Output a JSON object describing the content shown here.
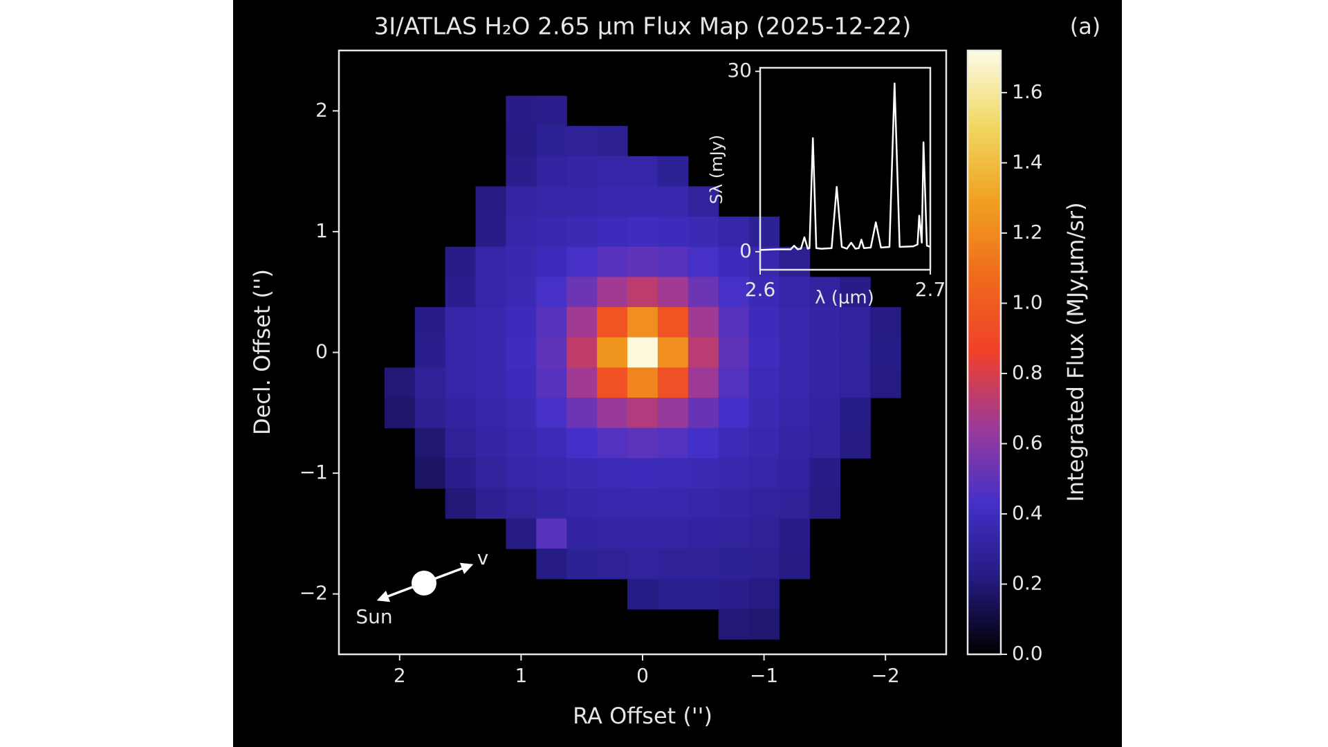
{
  "chart_data": [
    {
      "type": "heatmap",
      "title": "3I/ATLAS H₂O 2.65 μm Flux Map (2025-12-22)",
      "panel_label": "(a)",
      "x_label": "RA Offset ('')",
      "y_label": "Decl. Offset ('')",
      "xlim": [
        2.5,
        -2.5
      ],
      "ylim": [
        -2.5,
        2.5
      ],
      "xticks": [
        2,
        1,
        0,
        {
          "value": -1,
          "label": "−1"
        },
        {
          "value": -2,
          "label": "−2"
        }
      ],
      "yticks": [
        {
          "value": -2,
          "label": "−2"
        },
        {
          "value": -1,
          "label": "−1"
        },
        0,
        1,
        2
      ],
      "x": [
        2.25,
        2,
        1.75,
        1.5,
        1.25,
        1,
        0.75,
        0.5,
        0.25,
        0,
        -0.25,
        -0.5,
        -0.75,
        -1,
        -1.25,
        -1.5,
        -1.75,
        -2,
        -2.25
      ],
      "y": [
        2,
        1.75,
        1.5,
        1.25,
        1,
        0.75,
        0.5,
        0.25,
        0,
        -0.25,
        -0.5,
        -0.75,
        -1,
        -1.25,
        -1.5,
        -1.75,
        -2,
        -2.25
      ],
      "z": [
        [
          null,
          null,
          null,
          null,
          null,
          0.24,
          0.25,
          null,
          null,
          null,
          null,
          null,
          null,
          null,
          null,
          null,
          null,
          null,
          null
        ],
        [
          null,
          null,
          null,
          null,
          null,
          0.22,
          0.28,
          0.29,
          0.27,
          null,
          null,
          null,
          null,
          null,
          null,
          null,
          null,
          null,
          null
        ],
        [
          null,
          null,
          null,
          null,
          null,
          0.25,
          0.31,
          0.32,
          0.33,
          0.33,
          0.28,
          null,
          null,
          null,
          null,
          null,
          null,
          null,
          null
        ],
        [
          null,
          null,
          null,
          null,
          0.22,
          0.32,
          0.33,
          0.34,
          0.35,
          0.36,
          0.35,
          0.3,
          null,
          null,
          null,
          null,
          null,
          null,
          null
        ],
        [
          null,
          null,
          null,
          null,
          0.24,
          0.34,
          0.36,
          0.37,
          0.39,
          0.4,
          0.39,
          0.37,
          0.34,
          0.28,
          null,
          null,
          null,
          null,
          null
        ],
        [
          null,
          null,
          null,
          0.24,
          0.33,
          0.36,
          0.39,
          0.44,
          0.48,
          0.5,
          0.48,
          0.44,
          0.39,
          0.35,
          0.27,
          null,
          null,
          null,
          null
        ],
        [
          null,
          null,
          null,
          0.25,
          0.34,
          0.37,
          0.44,
          0.53,
          0.66,
          0.73,
          0.66,
          0.53,
          0.44,
          0.37,
          0.34,
          0.31,
          0.24,
          null,
          null
        ],
        [
          null,
          null,
          0.24,
          0.33,
          0.35,
          0.39,
          0.48,
          0.66,
          0.96,
          1.22,
          0.96,
          0.66,
          0.48,
          0.39,
          0.35,
          0.32,
          0.3,
          0.22,
          null
        ],
        [
          null,
          null,
          0.25,
          0.33,
          0.36,
          0.4,
          0.5,
          0.74,
          1.25,
          1.7,
          1.22,
          0.72,
          0.5,
          0.4,
          0.35,
          0.32,
          0.3,
          0.23,
          null
        ],
        [
          null,
          0.2,
          0.29,
          0.33,
          0.35,
          0.39,
          0.48,
          0.66,
          0.95,
          1.18,
          0.94,
          0.65,
          0.47,
          0.38,
          0.35,
          0.32,
          0.3,
          0.22,
          null
        ],
        [
          null,
          0.18,
          0.27,
          0.31,
          0.34,
          0.37,
          0.44,
          0.53,
          0.64,
          0.7,
          0.63,
          0.52,
          0.43,
          0.37,
          0.34,
          0.31,
          0.23,
          null,
          null
        ],
        [
          null,
          null,
          0.19,
          0.29,
          0.32,
          0.35,
          0.38,
          0.43,
          0.47,
          0.49,
          0.47,
          0.43,
          0.38,
          0.35,
          0.32,
          0.3,
          0.22,
          null,
          null
        ],
        [
          null,
          null,
          0.17,
          0.25,
          0.3,
          0.33,
          0.35,
          0.37,
          0.38,
          0.39,
          0.38,
          0.37,
          0.35,
          0.33,
          0.31,
          0.24,
          null,
          null,
          null
        ],
        [
          null,
          null,
          null,
          0.2,
          0.27,
          0.3,
          0.32,
          0.34,
          0.35,
          0.35,
          0.35,
          0.34,
          0.32,
          0.3,
          0.29,
          0.22,
          null,
          null,
          null
        ],
        [
          null,
          null,
          null,
          null,
          null,
          0.22,
          0.48,
          0.31,
          0.32,
          0.32,
          0.32,
          0.31,
          0.3,
          0.29,
          0.24,
          null,
          null,
          null,
          null
        ],
        [
          null,
          null,
          null,
          null,
          null,
          null,
          0.22,
          0.28,
          0.29,
          0.3,
          0.29,
          0.29,
          0.28,
          0.27,
          0.22,
          null,
          null,
          null,
          null
        ],
        [
          null,
          null,
          null,
          null,
          null,
          null,
          null,
          null,
          null,
          0.23,
          0.26,
          0.26,
          0.25,
          0.22,
          null,
          null,
          null,
          null,
          null
        ],
        [
          null,
          null,
          null,
          null,
          null,
          null,
          null,
          null,
          null,
          null,
          null,
          null,
          0.2,
          0.19,
          null,
          null,
          null,
          null,
          null
        ]
      ],
      "colormap": [
        "#000000",
        "#241a80",
        "#4330c8",
        "#9b3a9a",
        "#f0402a",
        "#f06a1c",
        "#f0a020",
        "#f0d860",
        "#fdfbe8"
      ],
      "colorbar": {
        "label": "Integrated Flux (MJy.μm/sr)",
        "lim": [
          0,
          1.72
        ],
        "ticks": [
          {
            "value": 0,
            "label": "0.0"
          },
          0.2,
          0.4,
          0.6,
          0.8,
          {
            "value": 1,
            "label": "1.0"
          },
          1.2,
          1.4,
          1.6
        ]
      },
      "annotations": {
        "sun": "Sun",
        "velocity": "v"
      }
    },
    {
      "type": "line",
      "x_label": "λ (μm)",
      "y_label": "Sλ (mJy)",
      "xlim": [
        2.6,
        2.7
      ],
      "ylim": [
        -3,
        30.6
      ],
      "xticks": [
        2.6,
        2.7
      ],
      "yticks": [
        0,
        30
      ],
      "color": "#ffffff",
      "x": [
        2.6,
        2.61,
        2.618,
        2.62,
        2.622,
        2.624,
        2.626,
        2.628,
        2.629,
        2.631,
        2.633,
        2.636,
        2.642,
        2.645,
        2.648,
        2.651,
        2.6535,
        2.656,
        2.658,
        2.6595,
        2.661,
        2.665,
        2.668,
        2.671,
        2.676,
        2.679,
        2.682,
        2.69,
        2.6925,
        2.6935,
        2.695,
        2.696,
        2.698,
        2.7
      ],
      "values": [
        0.3,
        0.4,
        0.4,
        1.0,
        0.4,
        0.5,
        2.4,
        0.5,
        0.6,
        18.9,
        0.6,
        0.5,
        0.6,
        10.8,
        0.8,
        0.5,
        1.5,
        0.5,
        0.6,
        2.0,
        0.6,
        0.7,
        4.9,
        0.7,
        0.8,
        28,
        0.8,
        0.9,
        1.2,
        6,
        1.5,
        18.2,
        1.0,
        0.8
      ]
    }
  ]
}
